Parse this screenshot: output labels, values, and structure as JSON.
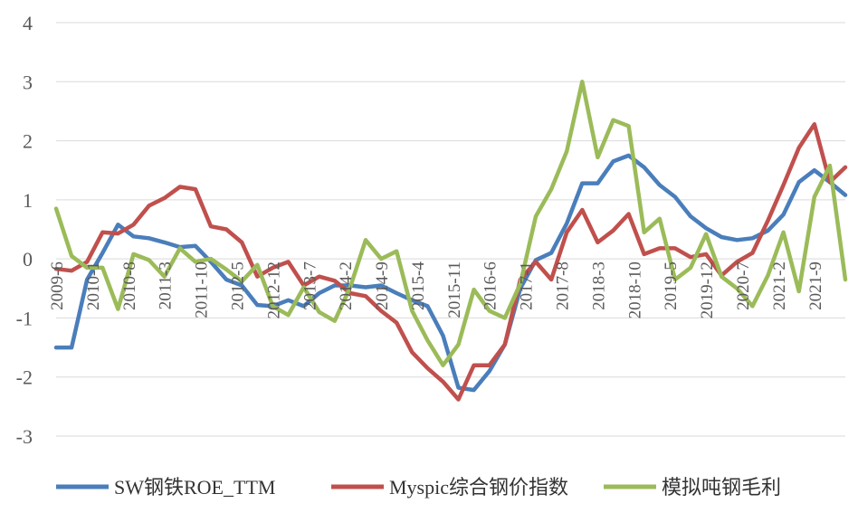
{
  "chart_data": {
    "type": "line",
    "title": "",
    "xlabel": "",
    "ylabel": "",
    "ylim": [
      -3,
      4
    ],
    "yticks": [
      "4",
      "3",
      "2",
      "1",
      "0",
      "-1",
      "-2",
      "-3"
    ],
    "grid": true,
    "legend_position": "bottom",
    "x": [
      "2009-6",
      "2009-9",
      "2009-12",
      "2010-3",
      "2010-6",
      "2010-9",
      "2010-12",
      "2011-3",
      "2011-6",
      "2011-9",
      "2011-12",
      "2012-3",
      "2012-6",
      "2012-9",
      "2012-12",
      "2013-3",
      "2013-6",
      "2013-9",
      "2013-12",
      "2014-3",
      "2014-6",
      "2014-9",
      "2014-12",
      "2015-3",
      "2015-6",
      "2015-9",
      "2015-12",
      "2016-3",
      "2016-6",
      "2016-9",
      "2016-12",
      "2017-3",
      "2017-6",
      "2017-9",
      "2017-12",
      "2018-3",
      "2018-6",
      "2018-9",
      "2018-12",
      "2019-3",
      "2019-6",
      "2019-9",
      "2019-12",
      "2020-3",
      "2020-6",
      "2020-9",
      "2020-12",
      "2021-3",
      "2021-6",
      "2021-9",
      "2021-12",
      "2022-3"
    ],
    "x_tick_labels": [
      "2009-6",
      "2010-1",
      "2010-8",
      "2011-3",
      "2011-10",
      "2012-5",
      "2012-12",
      "2013-7",
      "2014-2",
      "2014-9",
      "2015-4",
      "2015-11",
      "2016-6",
      "2017-1",
      "2017-8",
      "2018-3",
      "2018-10",
      "2019-5",
      "2019-12",
      "2020-7",
      "2021-2",
      "2021-9"
    ],
    "series": [
      {
        "name": "SW钢铁ROE_TTM",
        "color": "#4a7ebb",
        "values": [
          -1.5,
          -1.5,
          -0.35,
          0.1,
          0.58,
          0.38,
          0.35,
          0.28,
          0.2,
          0.22,
          -0.05,
          -0.35,
          -0.45,
          -0.78,
          -0.8,
          -0.7,
          -0.8,
          -0.58,
          -0.45,
          -0.45,
          -0.48,
          -0.45,
          -0.58,
          -0.7,
          -0.8,
          -1.3,
          -2.18,
          -2.22,
          -1.9,
          -1.45,
          -0.5,
          -0.02,
          0.1,
          0.6,
          1.28,
          1.28,
          1.65,
          1.75,
          1.55,
          1.25,
          1.05,
          0.72,
          0.52,
          0.37,
          0.32,
          0.35,
          0.48,
          0.75,
          1.3,
          1.5,
          1.3,
          1.08
        ]
      },
      {
        "name": "Myspic综合钢价指数",
        "color": "#c0504d",
        "values": [
          -0.17,
          -0.2,
          -0.05,
          0.45,
          0.43,
          0.58,
          0.9,
          1.03,
          1.22,
          1.18,
          0.55,
          0.5,
          0.28,
          -0.3,
          -0.15,
          -0.05,
          -0.45,
          -0.3,
          -0.37,
          -0.58,
          -0.63,
          -0.88,
          -1.08,
          -1.58,
          -1.85,
          -2.08,
          -2.38,
          -1.8,
          -1.8,
          -1.45,
          -0.35,
          -0.05,
          -0.35,
          0.45,
          0.83,
          0.28,
          0.48,
          0.76,
          0.08,
          0.18,
          0.18,
          0.03,
          0.08,
          -0.28,
          -0.05,
          0.1,
          0.65,
          1.25,
          1.88,
          2.28,
          1.3,
          1.55
        ]
      },
      {
        "name": "模拟吨钢毛利",
        "color": "#9bbb59",
        "values": [
          0.85,
          0.05,
          -0.15,
          -0.15,
          -0.85,
          0.08,
          -0.02,
          -0.3,
          0.18,
          -0.05,
          0.0,
          -0.18,
          -0.38,
          -0.1,
          -0.8,
          -0.95,
          -0.48,
          -0.9,
          -1.05,
          -0.48,
          0.32,
          0.0,
          0.13,
          -0.88,
          -1.38,
          -1.8,
          -1.45,
          -0.52,
          -0.88,
          -1.0,
          -0.42,
          0.72,
          1.18,
          1.82,
          3.0,
          1.72,
          2.35,
          2.25,
          0.45,
          0.68,
          -0.35,
          -0.15,
          0.42,
          -0.3,
          -0.5,
          -0.8,
          -0.28,
          0.45,
          -0.55,
          1.05,
          1.58,
          -0.35
        ]
      }
    ]
  }
}
